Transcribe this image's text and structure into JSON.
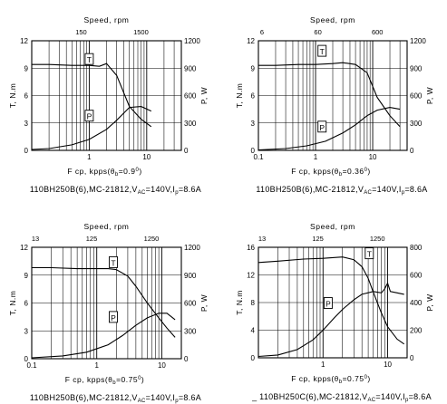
{
  "chart_data": [
    {
      "type": "line",
      "top_axis_label": "Speed, rpm",
      "top_ticks": [
        "150",
        "1500"
      ],
      "ylabel_left": "T, N.m",
      "ylabel_right": "P, W",
      "xlabel": "F cp, kpps(",
      "xlabel_theta": "θ",
      "xlabel_sub": "b",
      "xlabel_value": "=0.9",
      "xlabel_sup": "0",
      "xlabel_close": ")",
      "caption_pre": "110BH250B(6),MC-21812,V",
      "caption_sub1": "AC",
      "caption_mid": "=140V,I",
      "caption_sub2": "p",
      "caption_post": "=8.6A",
      "x_scale": "log",
      "xlim": [
        0.1,
        40
      ],
      "ylim_left": [
        0,
        12
      ],
      "ylim_right": [
        0,
        1200
      ],
      "x_ticks": [
        "1",
        "10"
      ],
      "y_ticks_left": [
        "0",
        "3",
        "6",
        "9",
        "12"
      ],
      "y_ticks_right": [
        "0",
        "300",
        "600",
        "900",
        "1200"
      ],
      "series": [
        {
          "name": "T",
          "axis": "left",
          "x": [
            0.1,
            0.2,
            0.5,
            1.0,
            1.5,
            2.0,
            3.0,
            5.0,
            8.0,
            12.0
          ],
          "y": [
            9.4,
            9.4,
            9.3,
            9.3,
            9.2,
            9.5,
            8.2,
            4.8,
            3.4,
            2.6
          ]
        },
        {
          "name": "P",
          "axis": "right",
          "x": [
            0.1,
            0.2,
            0.5,
            1.0,
            2.0,
            3.0,
            5.0,
            8.0,
            12.0
          ],
          "y": [
            10,
            20,
            60,
            120,
            230,
            330,
            470,
            480,
            430
          ]
        }
      ],
      "curve_labels": [
        {
          "text": "T",
          "x": 1.0,
          "y": 9.9,
          "axis": "left"
        },
        {
          "text": "P",
          "x": 1.0,
          "y": 370,
          "axis": "right"
        }
      ]
    },
    {
      "type": "line",
      "top_axis_label": "Speed, rpm",
      "top_ticks": [
        "6",
        "60",
        "600"
      ],
      "ylabel_left": "T, N.m",
      "ylabel_right": "P, W",
      "xlabel": "F cp, kpps(",
      "xlabel_theta": "θ",
      "xlabel_sub": "b",
      "xlabel_value": "=0.36",
      "xlabel_sup": "0",
      "xlabel_close": ")",
      "caption_pre": "110BH250B(6),MC-21812,V",
      "caption_sub1": "AC",
      "caption_mid": "=140V,I",
      "caption_sub2": "p",
      "caption_post": "=8.6A",
      "x_scale": "log",
      "xlim": [
        0.1,
        40
      ],
      "ylim_left": [
        0,
        12
      ],
      "ylim_right": [
        0,
        1200
      ],
      "x_ticks": [
        "0.1",
        "1",
        "10"
      ],
      "y_ticks_left": [
        "0",
        "3",
        "6",
        "9",
        "12"
      ],
      "y_ticks_right": [
        "0",
        "300",
        "600",
        "900",
        "1200"
      ],
      "series": [
        {
          "name": "T",
          "axis": "left",
          "x": [
            0.1,
            0.2,
            0.5,
            1.0,
            2.0,
            3.0,
            5.0,
            8.0,
            12.0,
            20.0,
            30.0
          ],
          "y": [
            9.3,
            9.3,
            9.4,
            9.4,
            9.5,
            9.6,
            9.4,
            8.5,
            5.8,
            3.8,
            2.6
          ]
        },
        {
          "name": "P",
          "axis": "right",
          "x": [
            0.1,
            0.3,
            0.7,
            1.5,
            3.0,
            5.0,
            8.0,
            12.0,
            20.0,
            30.0
          ],
          "y": [
            5,
            20,
            50,
            100,
            190,
            280,
            380,
            440,
            470,
            450
          ]
        }
      ],
      "curve_labels": [
        {
          "text": "T",
          "x": 1.3,
          "y": 10.8,
          "axis": "left"
        },
        {
          "text": "P",
          "x": 1.3,
          "y": 250,
          "axis": "right"
        }
      ]
    },
    {
      "type": "line",
      "top_axis_label": "Speed, rpm",
      "top_ticks": [
        "13",
        "125",
        "1250"
      ],
      "ylabel_left": "T, N.m",
      "ylabel_right": "P, W",
      "xlabel": "F cp, kpps(",
      "xlabel_theta": "θ",
      "xlabel_sub": "b",
      "xlabel_value": "=0.75",
      "xlabel_sup": "0",
      "xlabel_close": ")",
      "caption_pre": "110BH250B(6),MC-21812,V",
      "caption_sub1": "AC",
      "caption_mid": "=140V,I",
      "caption_sub2": "p",
      "caption_post": "=8.6A",
      "x_scale": "log",
      "xlim": [
        0.1,
        20
      ],
      "ylim_left": [
        0,
        12
      ],
      "ylim_right": [
        0,
        1200
      ],
      "x_ticks": [
        "0.1",
        "1",
        "10"
      ],
      "y_ticks_left": [
        "0",
        "3",
        "6",
        "9",
        "12"
      ],
      "y_ticks_right": [
        "0",
        "300",
        "600",
        "900",
        "1200"
      ],
      "series": [
        {
          "name": "T",
          "axis": "left",
          "x": [
            0.1,
            0.2,
            0.5,
            1.0,
            1.5,
            2.0,
            3.0,
            4.0,
            6.0,
            9.0,
            12.0,
            16.0
          ],
          "y": [
            9.8,
            9.8,
            9.7,
            9.7,
            9.7,
            9.6,
            8.9,
            7.8,
            6.0,
            4.4,
            3.3,
            2.3
          ]
        },
        {
          "name": "P",
          "axis": "right",
          "x": [
            0.1,
            0.3,
            0.7,
            1.5,
            2.5,
            4.0,
            6.0,
            9.0,
            12.0,
            16.0
          ],
          "y": [
            10,
            30,
            70,
            150,
            250,
            360,
            440,
            490,
            490,
            420
          ]
        }
      ],
      "curve_labels": [
        {
          "text": "T",
          "x": 1.8,
          "y": 10.3,
          "axis": "left"
        },
        {
          "text": "P",
          "x": 1.8,
          "y": 440,
          "axis": "right"
        }
      ]
    },
    {
      "type": "line",
      "top_axis_label": "Speed, rpm",
      "top_ticks": [
        "13",
        "125",
        "1250"
      ],
      "ylabel_left": "T, N.m",
      "ylabel_right": "P, W",
      "xlabel": "F cp, kpps(",
      "xlabel_theta": "θ",
      "xlabel_sub": "b",
      "xlabel_value": "=0.75",
      "xlabel_sup": "0",
      "xlabel_close": ")",
      "caption_pre": "_ 110BH250C(6),MC-21812,V",
      "caption_sub1": "AC",
      "caption_mid": "=140V,I",
      "caption_sub2": "p",
      "caption_post": "=8.6A",
      "x_scale": "log",
      "xlim": [
        0.1,
        20
      ],
      "ylim_left": [
        0,
        16
      ],
      "ylim_right": [
        0,
        800
      ],
      "x_ticks": [
        "1",
        "10"
      ],
      "y_ticks_left": [
        "0",
        "4",
        "8",
        "12",
        "16"
      ],
      "y_ticks_right": [
        "0",
        "200",
        "400",
        "600",
        "800"
      ],
      "series": [
        {
          "name": "T",
          "axis": "left",
          "x": [
            0.1,
            0.2,
            0.5,
            1.0,
            2.0,
            3.0,
            4.0,
            5.0,
            6.0,
            8.0,
            10.0,
            14.0,
            18.0
          ],
          "y": [
            13.8,
            14.0,
            14.3,
            14.4,
            14.6,
            14.2,
            13.2,
            11.5,
            9.5,
            6.5,
            4.5,
            2.7,
            2.0
          ]
        },
        {
          "name": "P",
          "axis": "right",
          "x": [
            0.1,
            0.2,
            0.4,
            0.7,
            1.0,
            1.5,
            2.0,
            3.0,
            4.0,
            6.0,
            8.0,
            9.0,
            10.0,
            11.0,
            14.0,
            18.0
          ],
          "y": [
            10,
            20,
            60,
            130,
            200,
            290,
            350,
            420,
            460,
            480,
            470,
            500,
            540,
            480,
            470,
            460
          ]
        }
      ],
      "curve_labels": [
        {
          "text": "T",
          "x": 5.2,
          "y": 15.0,
          "axis": "left"
        },
        {
          "text": "P",
          "x": 1.2,
          "y": 390,
          "axis": "right"
        }
      ]
    }
  ]
}
